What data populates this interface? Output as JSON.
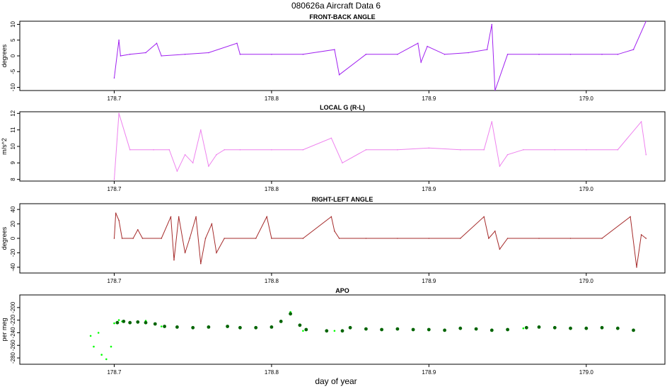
{
  "title": "080626a    Aircraft Data 6",
  "xlabel": "day of year",
  "chart_data": [
    {
      "type": "line",
      "title": "FRONT-BACK ANGLE",
      "ylabel": "degrees",
      "xlim": [
        178.64,
        179.05
      ],
      "ylim": [
        -11,
        11
      ],
      "x_ticks": [
        "178.7",
        "178.8",
        "178.9",
        "179.0"
      ],
      "y_ticks": [
        "-10",
        "-5",
        "0",
        "5",
        "10"
      ],
      "color": "#a020f0",
      "series": [
        {
          "x": [
            178.7,
            178.703,
            178.704,
            178.71,
            178.72,
            178.727,
            178.73,
            178.745,
            178.76,
            178.778,
            178.78,
            178.8,
            178.82,
            178.84,
            178.843,
            178.86,
            178.88,
            178.893,
            178.895,
            178.899,
            178.91,
            178.925,
            178.937,
            178.94,
            178.942,
            178.95,
            178.97,
            178.99,
            179.01,
            179.02,
            179.03,
            179.038
          ],
          "y": [
            -7,
            5,
            0,
            0.5,
            1,
            4,
            0,
            0.5,
            1,
            4,
            0.5,
            0.5,
            0.5,
            2,
            -6,
            0.5,
            0.5,
            4,
            -2,
            3,
            0.5,
            1,
            2,
            10,
            -11,
            0.5,
            0.5,
            0.5,
            0.5,
            0.5,
            2,
            11
          ]
        }
      ]
    },
    {
      "type": "line",
      "title": "LOCAL G (R-L)",
      "ylabel": "m/s^2",
      "xlim": [
        178.64,
        179.05
      ],
      "ylim": [
        7.9,
        12.1
      ],
      "x_ticks": [
        "178.7",
        "178.8",
        "178.9",
        "179.0"
      ],
      "y_ticks": [
        "8",
        "9",
        "10",
        "11",
        "12"
      ],
      "color": "#ee82ee",
      "series": [
        {
          "x": [
            178.7,
            178.703,
            178.71,
            178.725,
            178.735,
            178.74,
            178.745,
            178.75,
            178.755,
            178.76,
            178.765,
            178.77,
            178.78,
            178.8,
            178.82,
            178.838,
            178.845,
            178.86,
            178.88,
            178.9,
            178.92,
            178.935,
            178.94,
            178.945,
            178.95,
            178.96,
            178.98,
            179.0,
            179.02,
            179.035,
            179.038
          ],
          "y": [
            8,
            12,
            9.8,
            9.8,
            9.8,
            8.5,
            9.5,
            9.0,
            11.0,
            8.8,
            9.5,
            9.8,
            9.8,
            9.8,
            9.8,
            10.5,
            9.0,
            9.8,
            9.8,
            9.9,
            9.8,
            9.8,
            11.5,
            8.8,
            9.5,
            9.8,
            9.8,
            9.8,
            9.8,
            11.5,
            9.5
          ]
        }
      ]
    },
    {
      "type": "line",
      "title": "RIGHT-LEFT ANGLE",
      "ylabel": "degrees",
      "xlim": [
        178.64,
        179.05
      ],
      "ylim": [
        -48,
        48
      ],
      "x_ticks": [
        "178.7",
        "178.8",
        "178.9",
        "179.0"
      ],
      "y_ticks": [
        "-40",
        "-20",
        "0",
        "20",
        "40"
      ],
      "color": "#a52a2a",
      "series": [
        {
          "x": [
            178.7,
            178.701,
            178.703,
            178.705,
            178.712,
            178.715,
            178.718,
            178.73,
            178.736,
            178.738,
            178.741,
            178.745,
            178.748,
            178.752,
            178.755,
            178.758,
            178.762,
            178.765,
            178.77,
            178.79,
            178.797,
            178.8,
            178.82,
            178.838,
            178.84,
            178.843,
            178.86,
            178.88,
            178.9,
            178.92,
            178.935,
            178.938,
            178.942,
            178.945,
            178.95,
            178.97,
            178.99,
            179.01,
            179.028,
            179.032,
            179.035,
            179.038
          ],
          "y": [
            0,
            35,
            25,
            0,
            0,
            12,
            0,
            0,
            30,
            -30,
            30,
            -20,
            0,
            30,
            -35,
            0,
            20,
            -20,
            0,
            0,
            30,
            0,
            0,
            30,
            10,
            0,
            0,
            0,
            0,
            0,
            30,
            0,
            10,
            -15,
            0,
            0,
            0,
            0,
            30,
            -40,
            5,
            0
          ]
        }
      ]
    },
    {
      "type": "scatter",
      "title": "APO",
      "ylabel": "per meg",
      "xlim": [
        178.64,
        179.05
      ],
      "ylim": [
        -290,
        -180
      ],
      "x_ticks": [
        "178.7",
        "178.8",
        "178.9",
        "179.0"
      ],
      "y_ticks": [
        "-280",
        "-260",
        "-240",
        "-220",
        "-200"
      ],
      "series": [
        {
          "color": "#00ff00",
          "x": [
            178.685,
            178.687,
            178.69,
            178.692,
            178.695,
            178.698,
            178.7,
            178.703,
            178.705,
            178.71,
            178.72,
            178.73,
            178.74,
            178.76,
            178.78,
            178.8,
            178.812,
            178.82,
            178.84,
            178.86,
            178.88,
            178.9,
            178.92,
            178.94,
            178.96,
            178.98,
            179.0,
            179.02,
            179.03
          ],
          "y": [
            -245,
            -262,
            -240,
            -275,
            -282,
            -262,
            -225,
            -220,
            -222,
            -223,
            -221,
            -230,
            -232,
            -230,
            -233,
            -231,
            -207,
            -237,
            -237,
            -235,
            -234,
            -236,
            -233,
            -236,
            -233,
            -232,
            -233,
            -232,
            -236
          ]
        },
        {
          "color": "#006400",
          "x": [
            178.702,
            178.706,
            178.71,
            178.715,
            178.72,
            178.726,
            178.732,
            178.74,
            178.75,
            178.76,
            178.772,
            178.78,
            178.79,
            178.8,
            178.806,
            178.812,
            178.818,
            178.822,
            178.835,
            178.845,
            178.85,
            178.86,
            178.87,
            178.88,
            178.89,
            178.9,
            178.91,
            178.92,
            178.93,
            178.94,
            178.95,
            178.962,
            178.97,
            178.98,
            178.99,
            179.0,
            179.01,
            179.02,
            179.03
          ],
          "y": [
            -224,
            -222,
            -224,
            -223,
            -224,
            -226,
            -230,
            -231,
            -232,
            -231,
            -230,
            -232,
            -232,
            -231,
            -222,
            -210,
            -228,
            -235,
            -237,
            -237,
            -232,
            -234,
            -235,
            -234,
            -235,
            -235,
            -236,
            -233,
            -234,
            -236,
            -235,
            -232,
            -231,
            -232,
            -233,
            -233,
            -232,
            -233,
            -236
          ]
        }
      ]
    }
  ]
}
